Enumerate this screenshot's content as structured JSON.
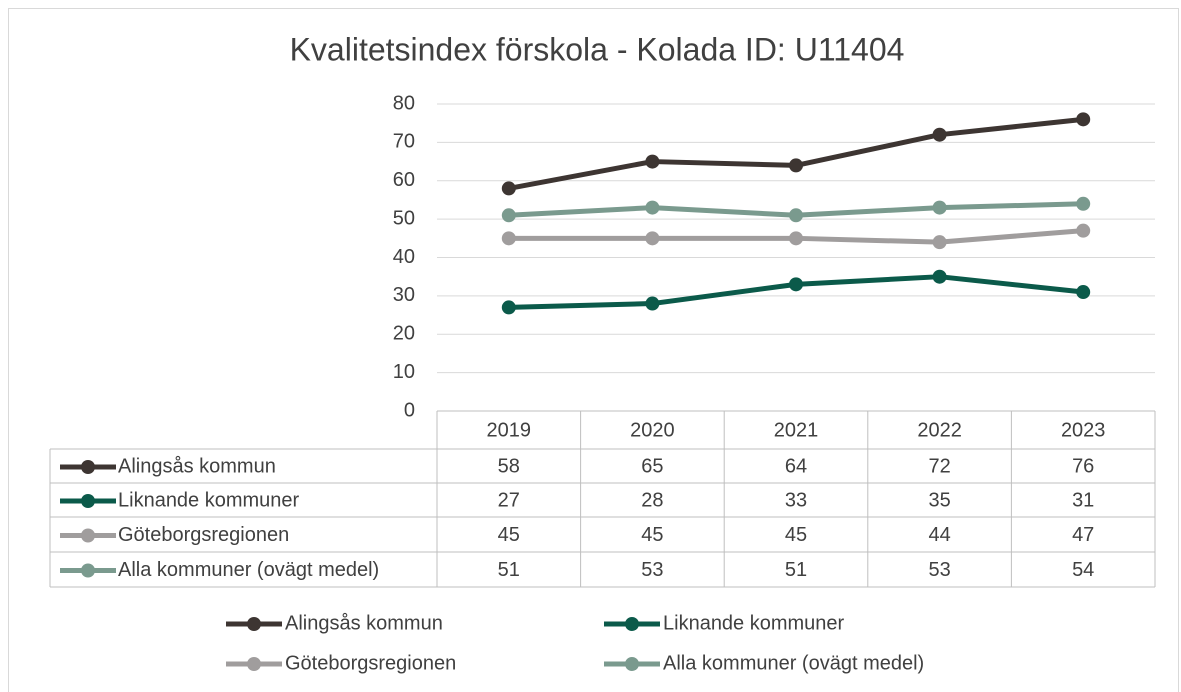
{
  "chart_data": {
    "type": "line",
    "title": "Kvalitetsindex förskola - Kolada ID: U11404",
    "categories": [
      "2019",
      "2020",
      "2021",
      "2022",
      "2023"
    ],
    "series": [
      {
        "name": "Alingsås kommun",
        "color": "#3d3532",
        "values": [
          58,
          65,
          64,
          72,
          76
        ]
      },
      {
        "name": "Liknande kommuner",
        "color": "#0b5a4a",
        "values": [
          27,
          28,
          33,
          35,
          31
        ]
      },
      {
        "name": "Göteborgsregionen",
        "color": "#a09d9d",
        "values": [
          45,
          45,
          45,
          44,
          47
        ]
      },
      {
        "name": "Alla kommuner (ovägt medel)",
        "color": "#7a9a8e",
        "values": [
          51,
          53,
          51,
          53,
          54
        ]
      }
    ],
    "ylim": [
      0,
      80
    ],
    "yticks": [
      0,
      10,
      20,
      30,
      40,
      50,
      60,
      70,
      80
    ],
    "grid": true,
    "legend": "bottom",
    "data_table": true
  }
}
